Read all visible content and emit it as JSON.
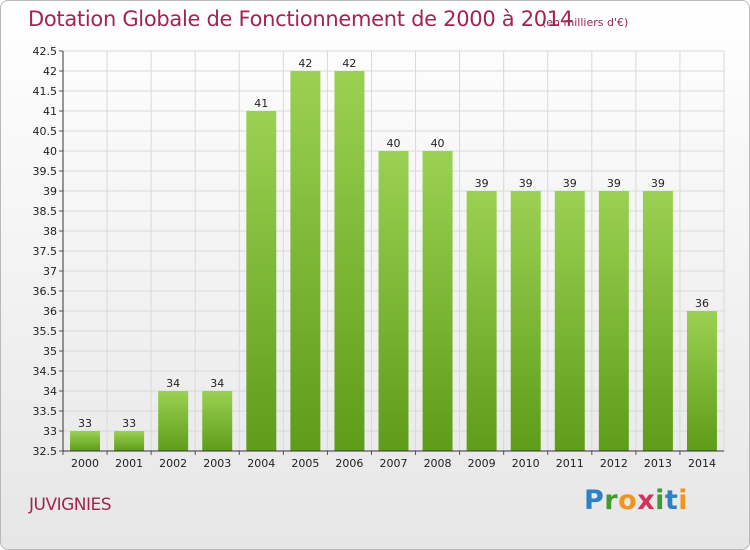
{
  "header": {
    "title": "Dotation Globale de Fonctionnement de 2000 à 2014",
    "unit": "(en milliers d'€)"
  },
  "footer": {
    "commune": "JUVIGNIES",
    "logo_text": "Proxiti"
  },
  "colors": {
    "title": "#a0264f",
    "bar_light": "#9bd152",
    "bar_dark": "#5e9c19",
    "grid": "#d9d9d9"
  },
  "chart_data": {
    "type": "bar",
    "title": "Dotation Globale de Fonctionnement de 2000 à 2014",
    "subtitle": "(en milliers d'€)",
    "xlabel": "",
    "ylabel": "",
    "categories": [
      "2000",
      "2001",
      "2002",
      "2003",
      "2004",
      "2005",
      "2006",
      "2007",
      "2008",
      "2009",
      "2010",
      "2011",
      "2012",
      "2013",
      "2014"
    ],
    "values": [
      33,
      33,
      34,
      34,
      41,
      42,
      42,
      40,
      40,
      39,
      39,
      39,
      39,
      39,
      36
    ],
    "ylim": [
      32.5,
      42.5
    ],
    "yticks": [
      "32.5",
      "33",
      "33.5",
      "34",
      "34.5",
      "35",
      "35.5",
      "36",
      "36.5",
      "37",
      "37.5",
      "38",
      "38.5",
      "39",
      "39.5",
      "40",
      "40.5",
      "41",
      "41.5",
      "42",
      "42.5"
    ],
    "grid": true,
    "legend": "none"
  }
}
